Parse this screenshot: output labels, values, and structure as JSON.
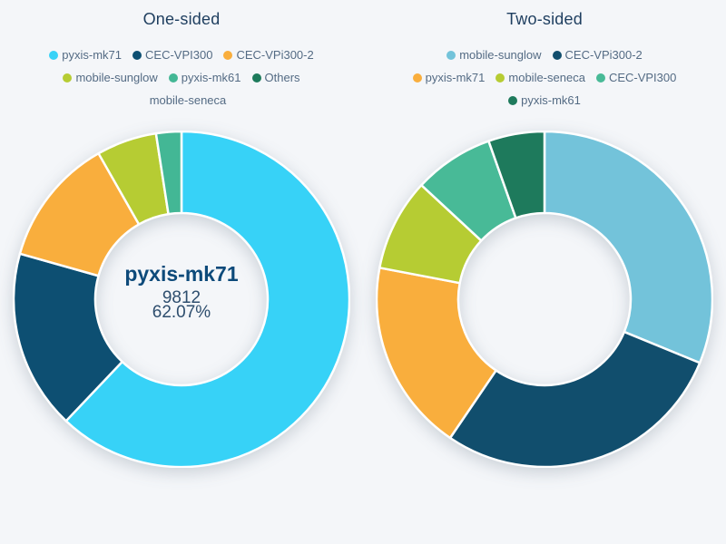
{
  "colors": {
    "background": "#f4f6f9",
    "title": "#1e3e5f",
    "legend_text": "#546b84",
    "center_name": "#0d4a7a",
    "center_value": "#2e4e6e",
    "slice_border": "#ffffff"
  },
  "chart_data": [
    {
      "type": "pie",
      "variant": "donut",
      "title": "One-sided",
      "legend_position": "top",
      "start_angle_deg": 0,
      "center_label": {
        "name": "pyxis-mk71",
        "value": "9812",
        "percent": "62.07%"
      },
      "slices": [
        {
          "label": "pyxis-mk71",
          "percent": 62.07,
          "color": "#37d2f7",
          "marker_visible": true
        },
        {
          "label": "CEC-VPI300",
          "percent": 17.3,
          "color": "#0d4f72",
          "marker_visible": true
        },
        {
          "label": "CEC-VPi300-2",
          "percent": 12.4,
          "color": "#f9ae3d",
          "marker_visible": true
        },
        {
          "label": "mobile-sunglow",
          "percent": 5.8,
          "color": "#b6cc33",
          "marker_visible": true
        },
        {
          "label": "pyxis-mk61",
          "percent": 2.43,
          "color": "#43b795",
          "marker_visible": true
        },
        {
          "label": "Others",
          "percent": 0,
          "color": "#1d7a5b",
          "marker_visible": true
        },
        {
          "label": "mobile-seneca",
          "percent": 0,
          "color": "transparent",
          "marker_visible": false
        }
      ]
    },
    {
      "type": "pie",
      "variant": "donut",
      "title": "Two-sided",
      "legend_position": "top",
      "start_angle_deg": 0,
      "center_label": null,
      "slices": [
        {
          "label": "mobile-sunglow",
          "percent": 31.2,
          "color": "#73c3da",
          "marker_visible": true
        },
        {
          "label": "CEC-VPi300-2",
          "percent": 28.3,
          "color": "#114e6d",
          "marker_visible": true
        },
        {
          "label": "pyxis-mk71",
          "percent": 18.5,
          "color": "#f9ae3d",
          "marker_visible": true
        },
        {
          "label": "mobile-seneca",
          "percent": 8.9,
          "color": "#b6cc33",
          "marker_visible": true
        },
        {
          "label": "CEC-VPI300",
          "percent": 7.7,
          "color": "#48ba97",
          "marker_visible": true
        },
        {
          "label": "pyxis-mk61",
          "percent": 5.4,
          "color": "#1e7a5c",
          "marker_visible": true
        }
      ]
    }
  ]
}
